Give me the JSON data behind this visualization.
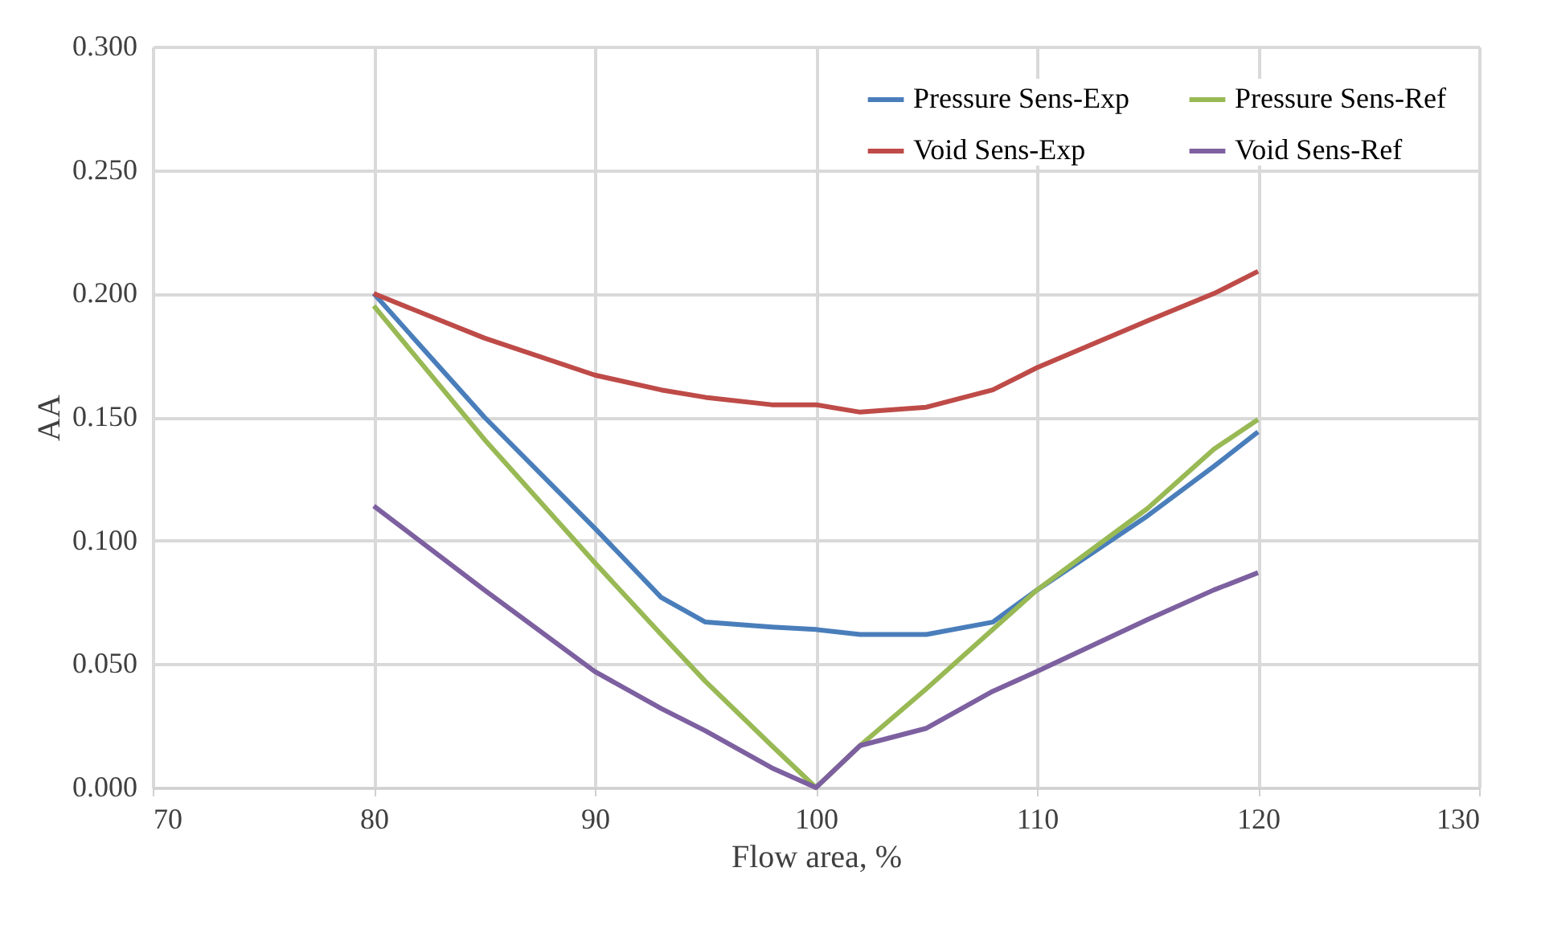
{
  "chart_data": {
    "type": "line",
    "xlabel": "Flow area, %",
    "ylabel": "AA",
    "x": [
      80,
      85,
      90,
      93,
      95,
      98,
      100,
      102,
      105,
      108,
      110,
      115,
      118,
      120
    ],
    "series": [
      {
        "name": "Pressure Sens-Exp",
        "color": "#4a7ebb",
        "values": [
          0.2,
          0.15,
          0.105,
          0.077,
          0.067,
          0.065,
          0.064,
          0.062,
          0.062,
          0.067,
          0.08,
          0.11,
          0.13,
          0.144
        ]
      },
      {
        "name": "Void Sens-Exp",
        "color": "#be4b48",
        "values": [
          0.2,
          0.182,
          0.167,
          0.161,
          0.158,
          0.155,
          0.155,
          0.152,
          0.154,
          0.161,
          0.17,
          0.189,
          0.2,
          0.209
        ]
      },
      {
        "name": "Pressure Sens-Ref",
        "color": "#98b954",
        "values": [
          0.195,
          0.141,
          0.091,
          0.062,
          0.043,
          0.017,
          0.0,
          0.017,
          0.04,
          0.064,
          0.08,
          0.113,
          0.137,
          0.149
        ]
      },
      {
        "name": "Void Sens-Ref",
        "color": "#7d60a0",
        "values": [
          0.114,
          0.08,
          0.047,
          0.032,
          0.023,
          0.008,
          0.0,
          0.017,
          0.024,
          0.039,
          0.047,
          0.068,
          0.08,
          0.087
        ]
      }
    ],
    "xlim": [
      70,
      130
    ],
    "xticks": [
      70,
      80,
      90,
      100,
      110,
      120,
      130
    ],
    "ylim": [
      0,
      0.3
    ],
    "yticks": [
      {
        "value": 0,
        "label": "0.000"
      },
      {
        "value": 0.05,
        "label": "0.050"
      },
      {
        "value": 0.1,
        "label": "0.100"
      },
      {
        "value": 0.15,
        "label": "0.150"
      },
      {
        "value": 0.2,
        "label": "0.200"
      },
      {
        "value": 0.25,
        "label": "0.250"
      },
      {
        "value": 0.3,
        "label": "0.300"
      }
    ],
    "grid": true,
    "legend": "top right",
    "marker": "none",
    "line_style": "solid"
  }
}
